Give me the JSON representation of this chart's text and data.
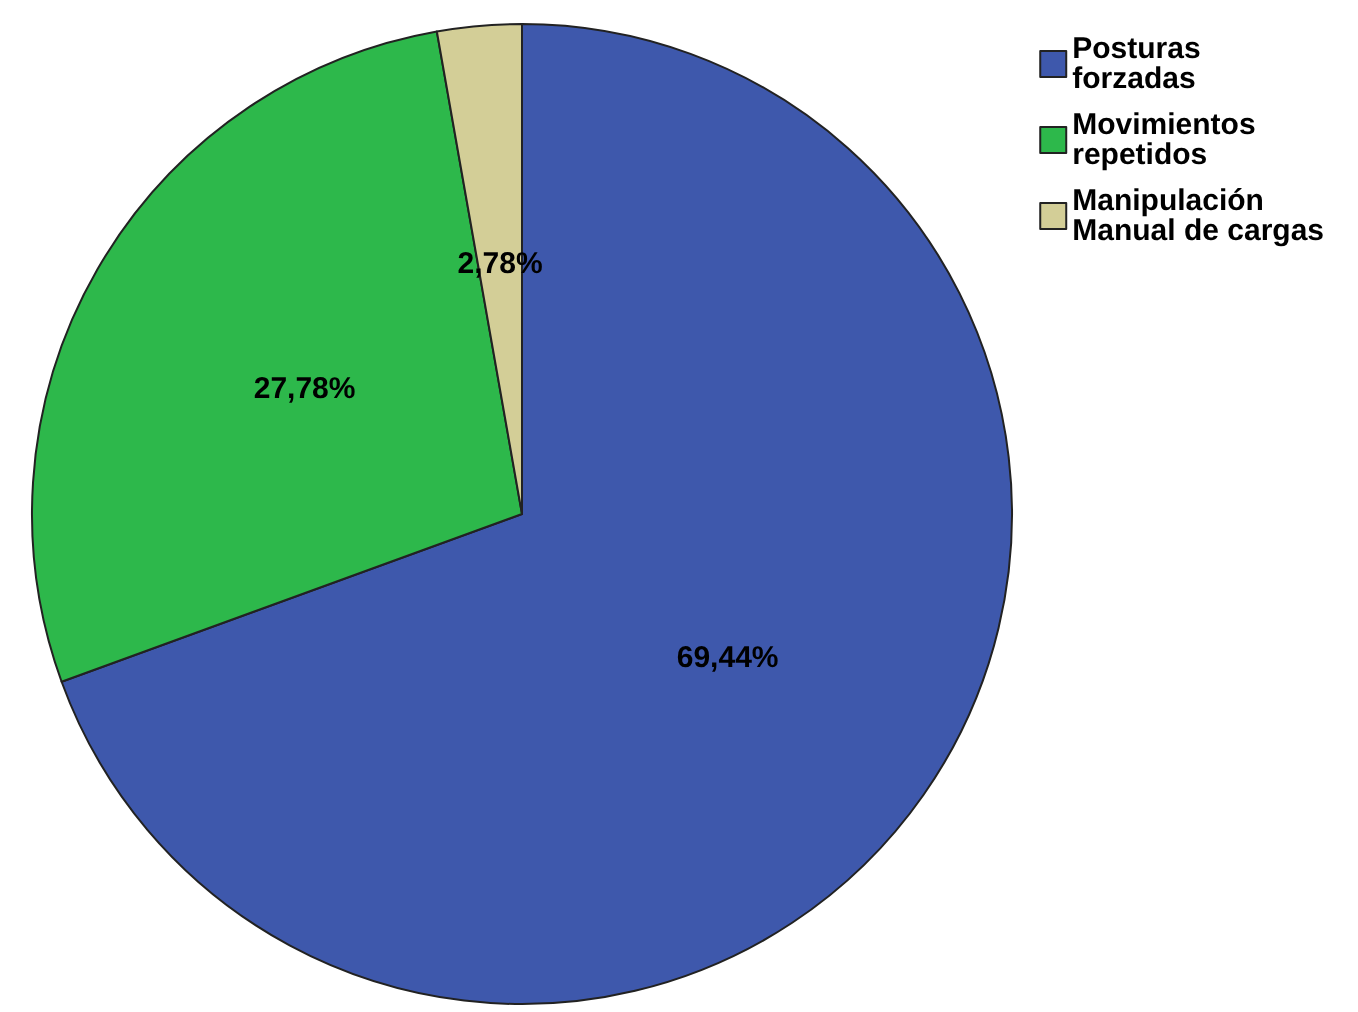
{
  "chart_data": {
    "type": "pie",
    "categories": [
      "Posturas forzadas",
      "Movimientos repetidos",
      "Manipulación Manual de cargas"
    ],
    "values": [
      69.44,
      27.78,
      2.78
    ],
    "value_labels": [
      "69,44%",
      "27,78%",
      "2,78%"
    ],
    "colors": [
      "#3e58ac",
      "#2db84b",
      "#d3ce97"
    ],
    "legend": "top right"
  }
}
